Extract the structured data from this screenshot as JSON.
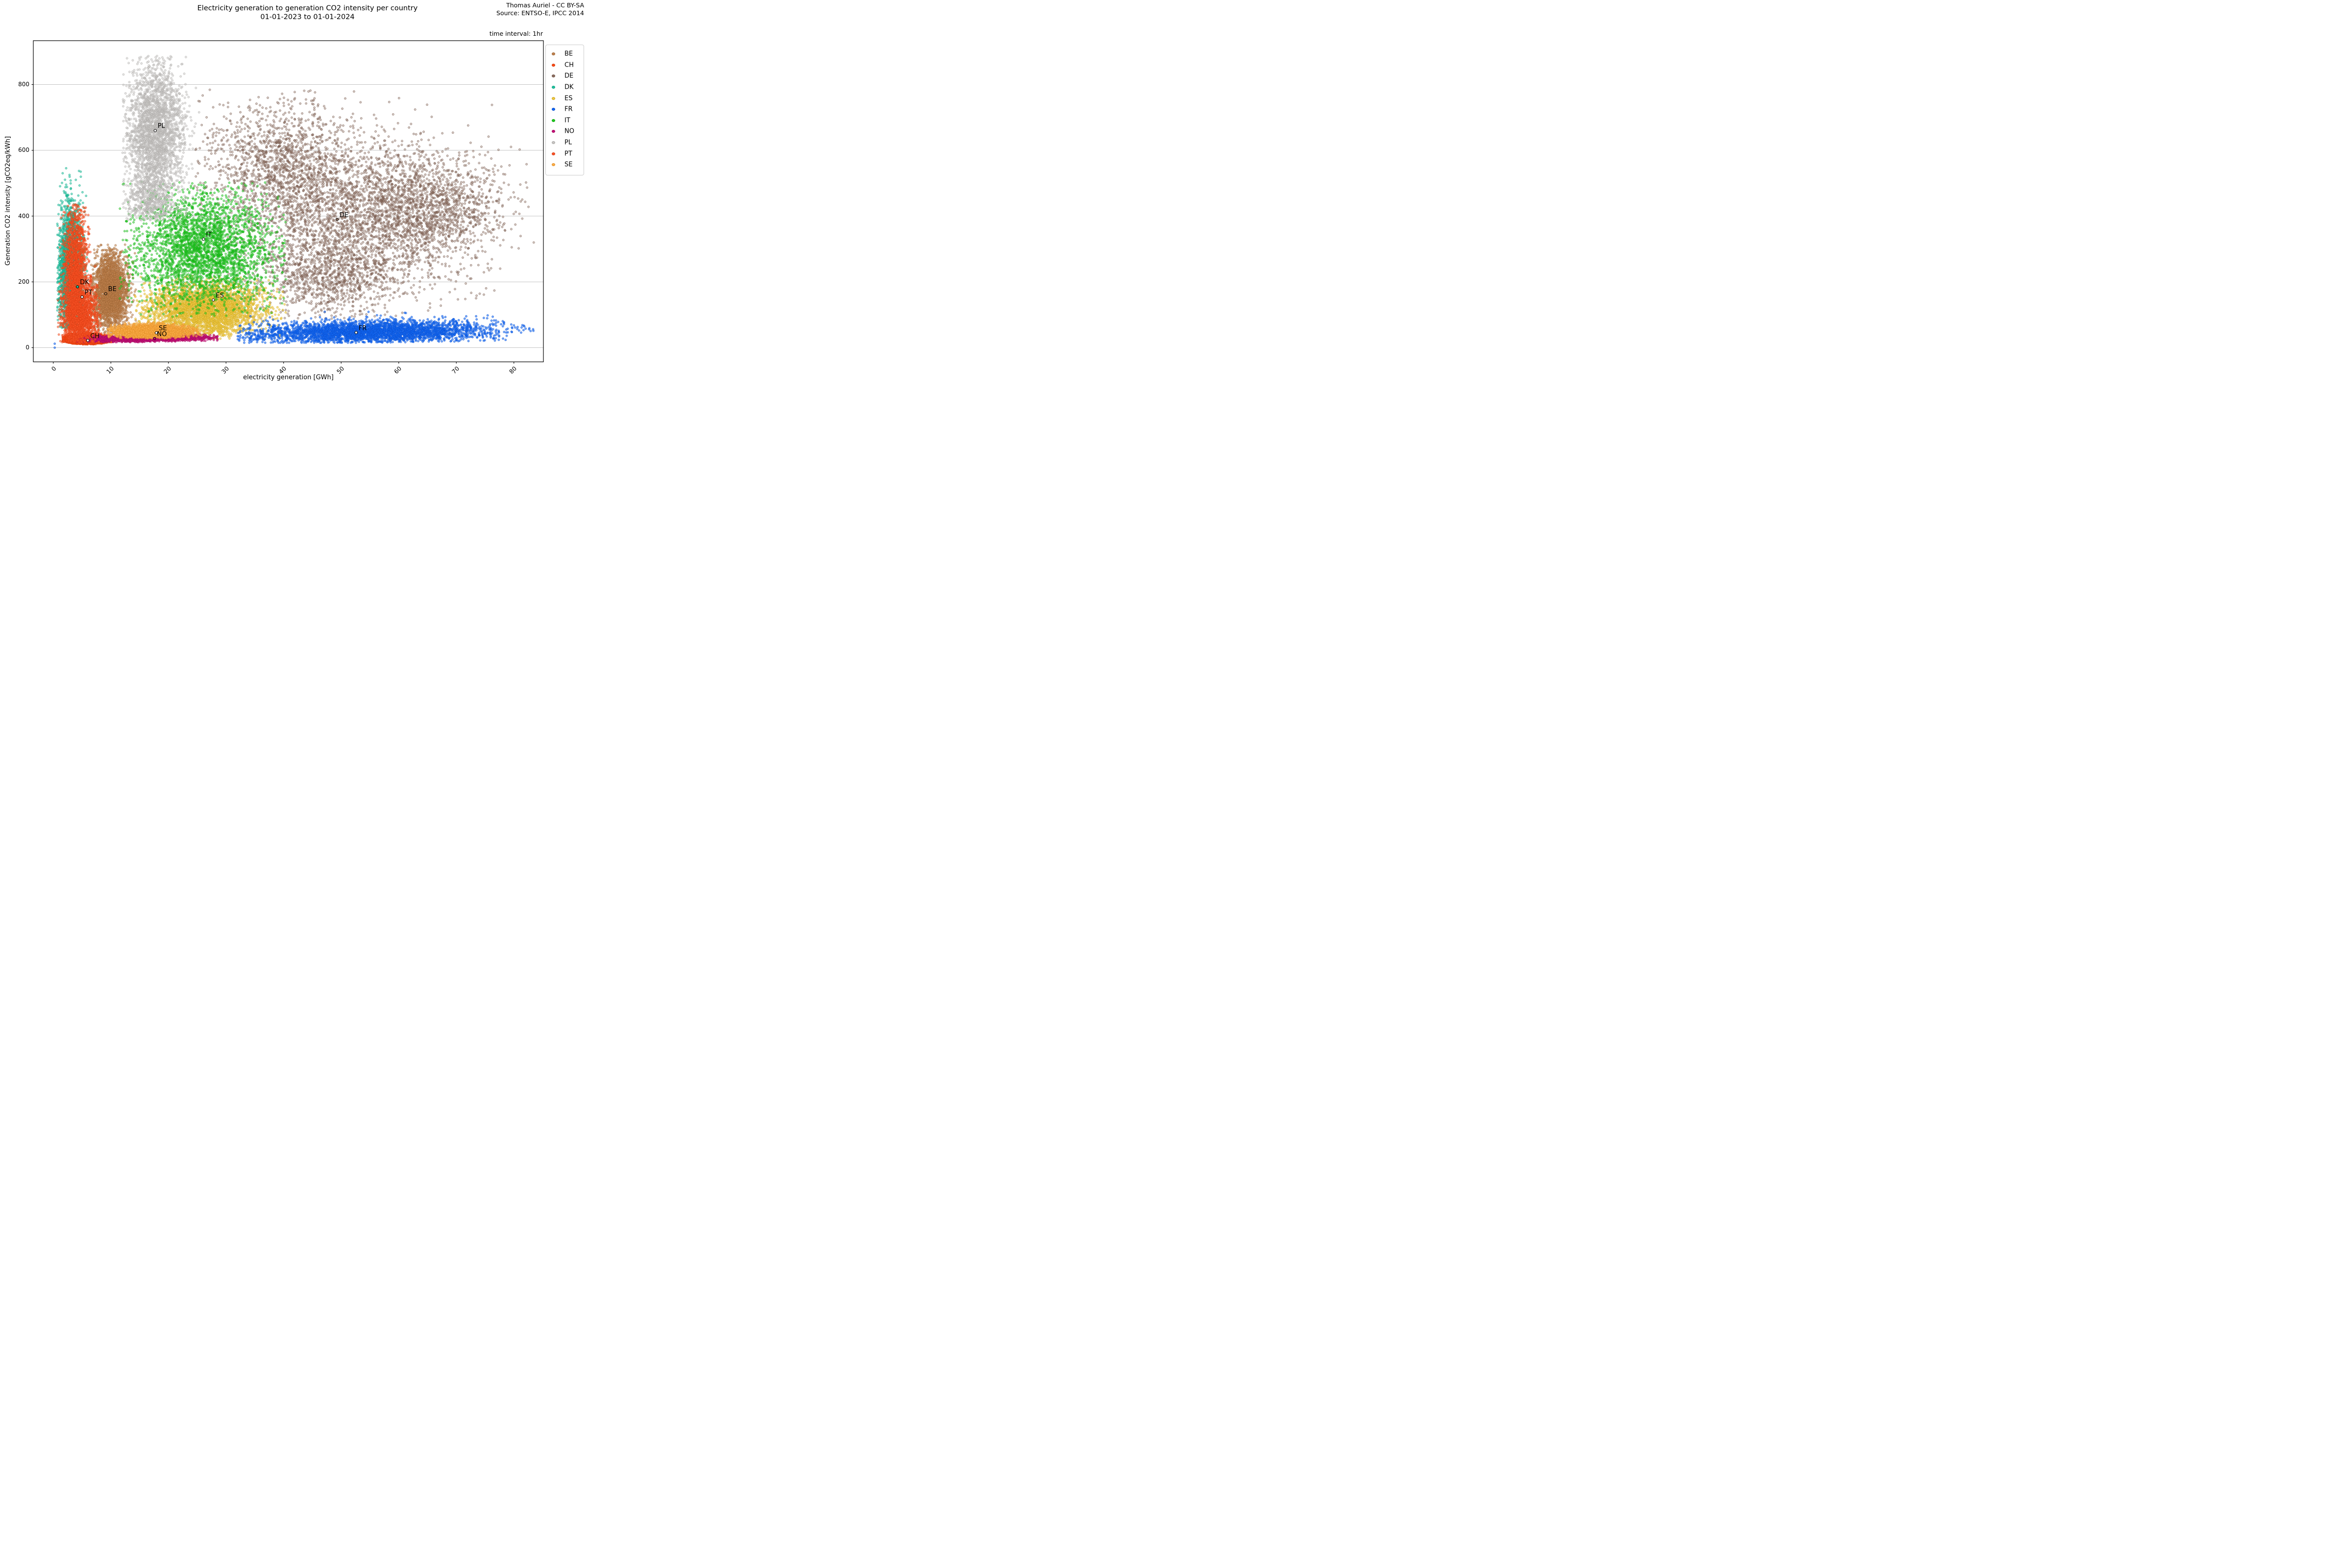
{
  "header": {
    "title_line1": "Electricity generation to generation CO2 intensity per country",
    "title_line2": "01-01-2023 to 01-01-2024",
    "attribution_line1": "Thomas Auriel - CC BY-SA",
    "attribution_line2": "Source: ENTSO-E, IPCC 2014",
    "time_interval_note": "time interval: 1hr"
  },
  "axes": {
    "xlabel": "electricity generation [GWh]",
    "ylabel": "Generation CO2 intensity [gCO2eq/kWh]",
    "x_ticks": [
      0,
      10,
      20,
      30,
      40,
      50,
      60,
      70,
      80
    ],
    "y_ticks": [
      0,
      200,
      400,
      600,
      800
    ],
    "x_range": [
      -3.5,
      85.2
    ],
    "y_range": [
      -42,
      934
    ],
    "grid": "horizontal",
    "grid_color": "#b0b0b0"
  },
  "legend": {
    "entries": [
      {
        "label": "BE",
        "color": "#c0824e",
        "edge": "#9a6331"
      },
      {
        "label": "CH",
        "color": "#fb4a15",
        "edge": "#d2380b"
      },
      {
        "label": "DE",
        "color": "#8d6e5f",
        "edge": "#6d5246"
      },
      {
        "label": "DK",
        "color": "#1fc19e",
        "edge": "#13a181"
      },
      {
        "label": "ES",
        "color": "#eec843",
        "edge": "#cda41c"
      },
      {
        "label": "FR",
        "color": "#1368f0",
        "edge": "#0a4ecf"
      },
      {
        "label": "IT",
        "color": "#1ec81e",
        "edge": "#13a513"
      },
      {
        "label": "NO",
        "color": "#c60d76",
        "edge": "#9f0a5e"
      },
      {
        "label": "PL",
        "color": "#c6c4c2",
        "edge": "#aaa8a6"
      },
      {
        "label": "PT",
        "color": "#f95327",
        "edge": "#d83b12"
      },
      {
        "label": "SE",
        "color": "#fcad49",
        "edge": "#df8d22"
      }
    ]
  },
  "chart_data": {
    "type": "scatter",
    "title": "Electricity generation to generation CO2 intensity per country 01-01-2023 to 01-01-2024",
    "xlabel": "electricity generation [GWh]",
    "ylabel": "Generation CO2 intensity [gCO2eq/kWh]",
    "xlim": [
      -3.5,
      85.2
    ],
    "ylim": [
      -42,
      934
    ],
    "legend_position": "upper right outside",
    "point_unit": "one point per hour of 2023",
    "series": [
      {
        "name": "BE",
        "fill": "#c0824e",
        "edge": "#9a6331",
        "alpha": 0.55,
        "label_point": {
          "x": 9.1,
          "y": 164,
          "marker_fill": "#c0824e"
        },
        "x_clip": [
          6.4,
          14.9
        ],
        "y_clip": [
          42,
          315
        ],
        "components": [
          {
            "n": 2600,
            "mx": 9.9,
            "sx": 1.5,
            "my": 168,
            "sy": 58
          }
        ]
      },
      {
        "name": "CH",
        "fill": "#fb4a15",
        "edge": "#d2380b",
        "alpha": 0.6,
        "label_point": {
          "x": 6.0,
          "y": 22,
          "marker_fill": "#ffffff"
        },
        "x_clip": [
          1.6,
          11.2
        ],
        "y_clip": [
          9,
          48
        ],
        "y_floor_curve": {
          "x0": 6.0,
          "k": 0.4,
          "base": 10
        },
        "components": [
          {
            "n": 2800,
            "mx": 5.6,
            "sx": 1.7,
            "my": 25,
            "sy": 7.5
          }
        ]
      },
      {
        "name": "DE",
        "fill": "#8d6e5f",
        "edge": "#6d5246",
        "alpha": 0.42,
        "label_point": {
          "x": 49.3,
          "y": 390,
          "marker_fill": "#8d6e5f"
        },
        "x_clip": [
          24.5,
          83.5
        ],
        "y_clip": [
          88,
          785
        ],
        "components": [
          {
            "n": 1500,
            "mx": 39,
            "sx": 6.5,
            "my": 555,
            "sy": 100
          },
          {
            "n": 2300,
            "mx": 52,
            "sx": 8.5,
            "my": 400,
            "sy": 120
          },
          {
            "n": 1500,
            "mx": 66,
            "sx": 6.5,
            "my": 425,
            "sy": 90
          },
          {
            "n": 900,
            "mx": 47,
            "sx": 6.0,
            "my": 215,
            "sy": 62
          }
        ]
      },
      {
        "name": "DK",
        "fill": "#1fc19e",
        "edge": "#13a181",
        "alpha": 0.55,
        "label_point": {
          "x": 4.2,
          "y": 185,
          "marker_fill": "#1fc19e"
        },
        "x_clip": [
          0.7,
          5.9
        ],
        "y_clip": [
          58,
          548
        ],
        "components": [
          {
            "n": 2400,
            "mx": 3.0,
            "sx": 1.05,
            "my": 235,
            "sy": 105
          }
        ]
      },
      {
        "name": "ES",
        "fill": "#eec843",
        "edge": "#cda41c",
        "alpha": 0.6,
        "label_point": {
          "x": 27.8,
          "y": 145,
          "marker_fill": "#ffffff"
        },
        "x_clip": [
          14,
          40.5
        ],
        "y_clip": [
          26,
          218
        ],
        "components": [
          {
            "n": 3200,
            "mx": 26.5,
            "sx": 5.0,
            "my": 116,
            "sy": 40
          }
        ]
      },
      {
        "name": "FR",
        "fill": "#1368f0",
        "edge": "#0a4ecf",
        "alpha": 0.6,
        "label_point": {
          "x": 52.6,
          "y": 46,
          "marker_fill": "#ffffff"
        },
        "x_clip": [
          32,
          84
        ],
        "y_clip": [
          15,
          112
        ],
        "y_slope_per_x": 0.25,
        "outliers": [
          {
            "x": 0.25,
            "y": 0
          },
          {
            "x": 0.25,
            "y": 12
          }
        ],
        "components": [
          {
            "n": 3600,
            "mx": 55,
            "sx": 10.5,
            "my": 48,
            "sy": 17
          }
        ]
      },
      {
        "name": "IT",
        "fill": "#1ec81e",
        "edge": "#13a513",
        "alpha": 0.5,
        "label_point": {
          "x": 26.1,
          "y": 330,
          "marker_fill": "#ffffff"
        },
        "x_clip": [
          11.5,
          40.5
        ],
        "y_clip": [
          92,
          505
        ],
        "components": [
          {
            "n": 3200,
            "mx": 26,
            "sx": 6.2,
            "my": 300,
            "sy": 88
          }
        ]
      },
      {
        "name": "NO",
        "fill": "#c60d76",
        "edge": "#9f0a5e",
        "alpha": 0.6,
        "label_point": {
          "x": 17.6,
          "y": 28,
          "marker_fill": "#c60d76"
        },
        "x_clip": [
          4,
          28.6
        ],
        "y_clip": [
          17,
          43
        ],
        "y_slope_per_x": 0.3,
        "components": [
          {
            "n": 2200,
            "mx": 16,
            "sx": 5.6,
            "my": 28,
            "sy": 4.5
          }
        ]
      },
      {
        "name": "PL",
        "fill": "#c6c4c2",
        "edge": "#aaa8a6",
        "alpha": 0.5,
        "label_point": {
          "x": 17.7,
          "y": 660,
          "marker_fill": "#ffffff"
        },
        "x_clip": [
          12,
          26
        ],
        "y_clip": [
          385,
          888
        ],
        "components": [
          {
            "n": 2600,
            "mx": 17.6,
            "sx": 2.5,
            "my": 655,
            "sy": 105
          },
          {
            "n": 500,
            "mx": 17.0,
            "sx": 2.2,
            "my": 445,
            "sy": 45
          }
        ]
      },
      {
        "name": "PT",
        "fill": "#f95327",
        "edge": "#d83b12",
        "alpha": 0.55,
        "label_point": {
          "x": 5.0,
          "y": 154,
          "marker_fill": "#ffffff"
        },
        "x_clip": [
          0.8,
          8.2
        ],
        "y_clip": [
          16,
          436
        ],
        "components": [
          {
            "n": 1600,
            "mx": 3.9,
            "sx": 1.0,
            "my": 250,
            "sy": 92
          },
          {
            "n": 1700,
            "mx": 4.6,
            "sx": 1.55,
            "my": 95,
            "sy": 55
          }
        ]
      },
      {
        "name": "SE",
        "fill": "#fcad49",
        "edge": "#df8d22",
        "alpha": 0.6,
        "label_point": {
          "x": 17.9,
          "y": 45,
          "marker_fill": "#ffffff"
        },
        "x_clip": [
          9.4,
          25.7
        ],
        "y_clip": [
          28,
          80
        ],
        "components": [
          {
            "n": 2600,
            "mx": 17,
            "sx": 3.3,
            "my": 49,
            "sy": 10
          }
        ]
      }
    ]
  }
}
